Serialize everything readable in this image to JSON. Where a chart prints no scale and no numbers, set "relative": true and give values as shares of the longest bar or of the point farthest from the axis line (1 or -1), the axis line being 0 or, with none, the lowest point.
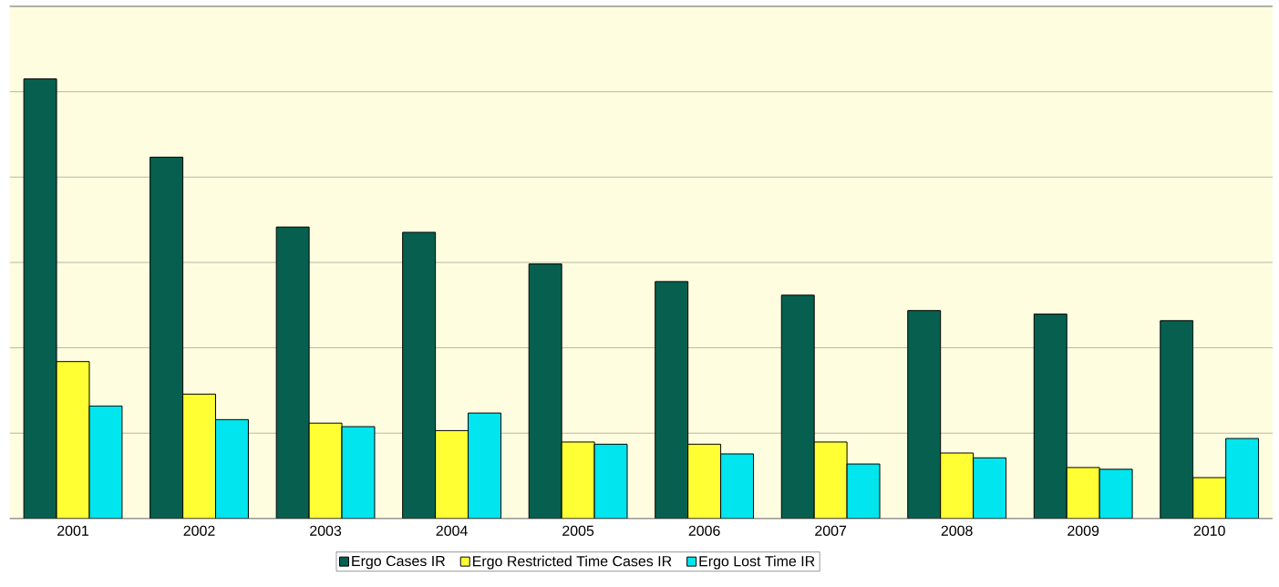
{
  "chart_data": {
    "type": "bar",
    "relative": true,
    "grid": "y",
    "legend": "bottom",
    "categories": [
      "2001",
      "2002",
      "2003",
      "2004",
      "2005",
      "2006",
      "2007",
      "2008",
      "2009",
      "2010"
    ],
    "series": [
      {
        "name": "Ergo Cases IR",
        "color": "#07604f",
        "values": [
          1,
          0.822,
          0.663,
          0.651,
          0.579,
          0.539,
          0.508,
          0.473,
          0.465,
          0.45
        ]
      },
      {
        "name": "Ergo Restricted Time Cases IR",
        "color": "#ffff33",
        "values": [
          0.357,
          0.283,
          0.217,
          0.2,
          0.174,
          0.169,
          0.174,
          0.149,
          0.116,
          0.093
        ]
      },
      {
        "name": "Ergo Lost Time IR",
        "color": "#00e5ee",
        "values": [
          0.256,
          0.225,
          0.209,
          0.24,
          0.169,
          0.147,
          0.124,
          0.138,
          0.112,
          0.182
        ]
      }
    ]
  }
}
